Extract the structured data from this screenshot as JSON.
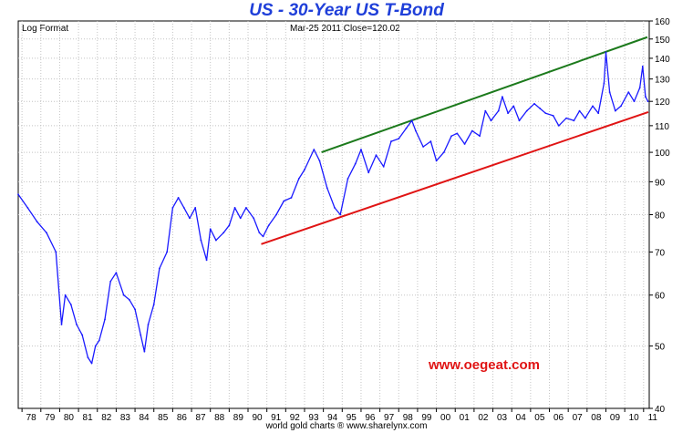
{
  "chart_data": {
    "type": "line",
    "title": "US  -  30-Year US T-Bond",
    "scale_note": "Log Format",
    "header_info": "Mar-25  2011   Close=120.02",
    "footer": "world gold charts ® www.sharelynx.com",
    "watermark": "www.oegeat.com",
    "y_scale": "log",
    "ylim": [
      40,
      160
    ],
    "y_ticks": [
      40,
      50,
      60,
      70,
      80,
      90,
      100,
      110,
      120,
      130,
      140,
      150,
      160
    ],
    "x_ticks": [
      "78",
      "79",
      "80",
      "81",
      "82",
      "83",
      "84",
      "85",
      "86",
      "87",
      "88",
      "89",
      "90",
      "91",
      "92",
      "93",
      "94",
      "95",
      "96",
      "97",
      "98",
      "99",
      "00",
      "01",
      "02",
      "03",
      "04",
      "05",
      "06",
      "07",
      "08",
      "09",
      "10",
      "11"
    ],
    "xlim": [
      1977.8,
      2011.3
    ],
    "grid": true,
    "series": [
      {
        "color": "#1a1aff",
        "x": [
          1977.8,
          1978.3,
          1978.8,
          1979.3,
          1979.8,
          1980.1,
          1980.3,
          1980.6,
          1980.9,
          1981.2,
          1981.5,
          1981.7,
          1981.9,
          1982.1,
          1982.4,
          1982.7,
          1983.0,
          1983.4,
          1983.7,
          1984.0,
          1984.3,
          1984.5,
          1984.7,
          1985.0,
          1985.3,
          1985.7,
          1986.0,
          1986.3,
          1986.6,
          1986.9,
          1987.2,
          1987.5,
          1987.8,
          1988.0,
          1988.3,
          1988.7,
          1989.0,
          1989.3,
          1989.6,
          1989.9,
          1990.3,
          1990.6,
          1990.8,
          1991.1,
          1991.5,
          1991.9,
          1992.3,
          1992.7,
          1993.0,
          1993.5,
          1993.8,
          1994.2,
          1994.6,
          1994.9,
          1995.3,
          1995.7,
          1996.0,
          1996.4,
          1996.8,
          1997.2,
          1997.6,
          1998.0,
          1998.4,
          1998.7,
          1998.9,
          1999.3,
          1999.7,
          2000.0,
          2000.4,
          2000.8,
          2001.1,
          2001.5,
          2001.9,
          2002.3,
          2002.6,
          2002.9,
          2003.3,
          2003.5,
          2003.8,
          2004.1,
          2004.4,
          2004.8,
          2005.2,
          2005.5,
          2005.8,
          2006.2,
          2006.5,
          2006.9,
          2007.3,
          2007.6,
          2007.9,
          2008.3,
          2008.6,
          2008.9,
          2009.0,
          2009.2,
          2009.5,
          2009.8,
          2010.2,
          2010.5,
          2010.8,
          2010.95,
          2011.1,
          2011.23
        ],
        "values": [
          86,
          82,
          78,
          75,
          70,
          54,
          60,
          58,
          54,
          52,
          48,
          47,
          50,
          51,
          55,
          63,
          65,
          60,
          59,
          57,
          52,
          49,
          54,
          58,
          66,
          70,
          82,
          85,
          82,
          79,
          82,
          73,
          68,
          76,
          73,
          75,
          77,
          82,
          79,
          82,
          79,
          75,
          74,
          77,
          80,
          84,
          85,
          91,
          94,
          101,
          97,
          88,
          82,
          80,
          91,
          96,
          101,
          93,
          99,
          95,
          104,
          105,
          109,
          112,
          108,
          102,
          104,
          97,
          100,
          106,
          107,
          103,
          108,
          106,
          116,
          112,
          116,
          122,
          115,
          118,
          112,
          116,
          119,
          117,
          115,
          114,
          110,
          113,
          112,
          116,
          113,
          118,
          115,
          128,
          143,
          124,
          116,
          118,
          124,
          120,
          126,
          136,
          122,
          120
        ]
      }
    ],
    "trend_lines": [
      {
        "name": "upper",
        "color": "#1c7a1c",
        "x": [
          1993.9,
          2011.2
        ],
        "values": [
          100,
          151
        ]
      },
      {
        "name": "lower",
        "color": "#e01414",
        "x": [
          1990.7,
          2011.25
        ],
        "values": [
          72,
          115.5
        ]
      }
    ]
  }
}
